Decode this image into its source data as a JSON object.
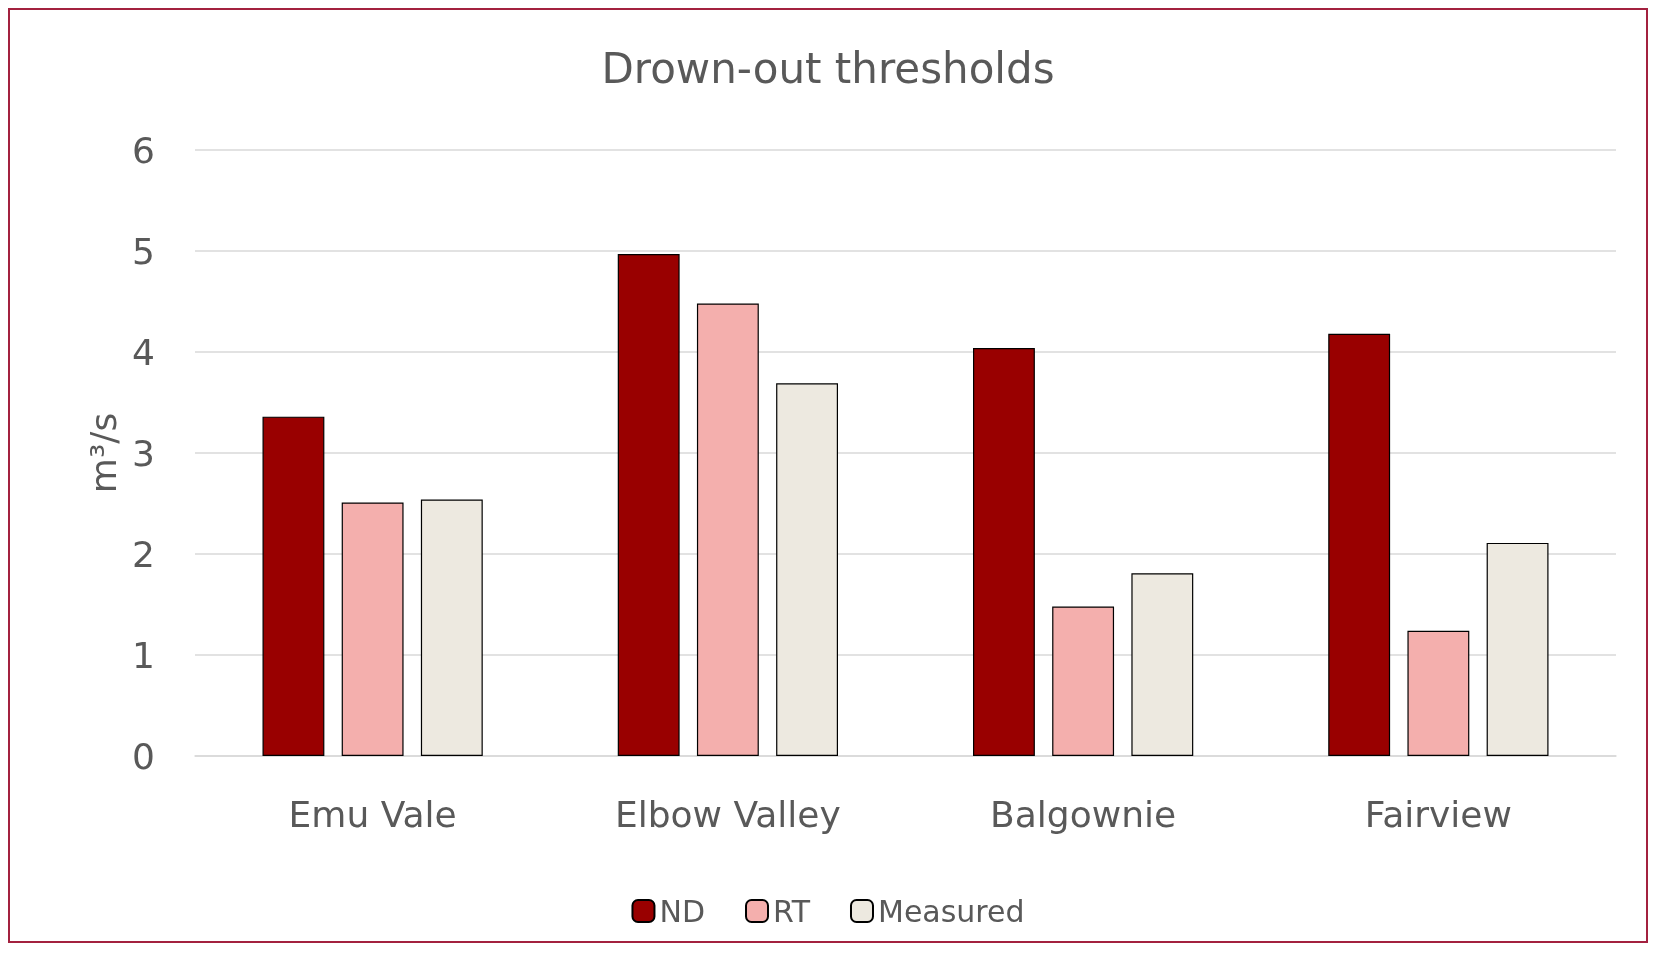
{
  "chart_data": {
    "type": "bar",
    "title": "Drown-out thresholds",
    "ylabel": "m³/s",
    "categories": [
      "Emu Vale",
      "Elbow Valley",
      "Balgownie",
      "Fairview"
    ],
    "series": [
      {
        "name": "ND",
        "color": "#990000",
        "values": [
          3.36,
          4.97,
          4.04,
          4.18
        ]
      },
      {
        "name": "RT",
        "color": "#f4afad",
        "values": [
          2.51,
          4.48,
          1.48,
          1.24
        ]
      },
      {
        "name": "Measured",
        "color": "#ede9e0",
        "values": [
          2.54,
          3.69,
          1.81,
          2.11
        ]
      }
    ],
    "ylim": [
      0,
      6
    ],
    "yticks": [
      0,
      1,
      2,
      3,
      4,
      5,
      6
    ],
    "grid": "y",
    "legend": "bottom"
  }
}
